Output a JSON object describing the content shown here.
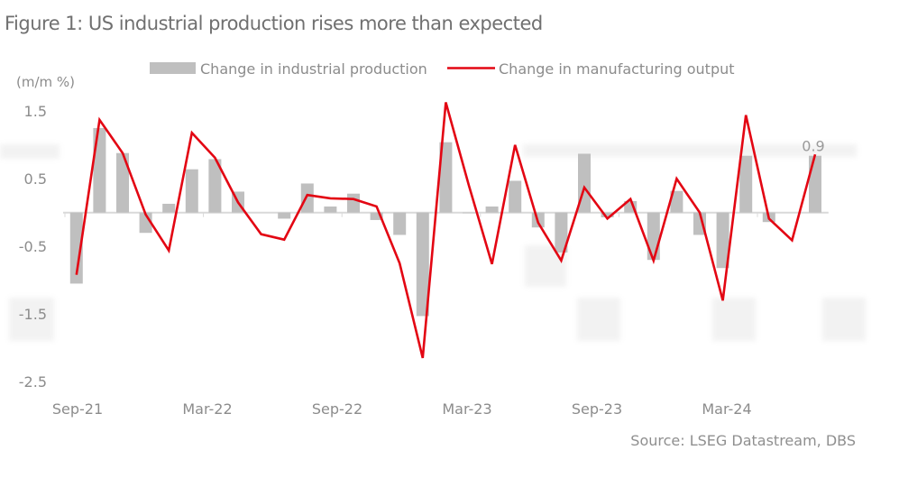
{
  "title": "Figure 1:  US industrial production rises more than expected",
  "source": "Source: LSEG Datastream, DBS",
  "colors": {
    "bar": "#bfbfbf",
    "line": "#e30613",
    "axis": "#d9d9d9",
    "text": "#8c8c8c"
  },
  "chart_data": {
    "type": "bar",
    "title": "Figure 1:  US industrial production rises more than expected",
    "ylabel": "(m/m %)",
    "xlabel": "",
    "ylim": [
      -2.5,
      1.5
    ],
    "yticks": [
      1.5,
      0.5,
      -0.5,
      -1.5,
      -2.5
    ],
    "ytick_labels": [
      "1.5",
      "0.5",
      "-0.5",
      "-1.5",
      "-2.5"
    ],
    "xtick_labels": [
      "Sep-21",
      "Mar-22",
      "Sep-22",
      "Mar-23",
      "Sep-23",
      "Mar-24"
    ],
    "xtick_indices": [
      0,
      6,
      12,
      18,
      24,
      30
    ],
    "grid": false,
    "legend_position": "top-center",
    "categories": [
      "Sep-21",
      "Oct-21",
      "Nov-21",
      "Dec-21",
      "Jan-22",
      "Feb-22",
      "Mar-22",
      "Apr-22",
      "May-22",
      "Jun-22",
      "Jul-22",
      "Aug-22",
      "Sep-22",
      "Oct-22",
      "Nov-22",
      "Dec-22",
      "Jan-23",
      "Feb-23",
      "Mar-23",
      "Apr-23",
      "May-23",
      "Jun-23",
      "Jul-23",
      "Aug-23",
      "Sep-23",
      "Oct-23",
      "Nov-23",
      "Dec-23",
      "Jan-24",
      "Feb-24",
      "Mar-24",
      "Apr-24",
      "May-24"
    ],
    "series": [
      {
        "name": "Change in industrial production",
        "type": "bar",
        "values": [
          -1.05,
          1.25,
          0.88,
          -0.3,
          0.13,
          0.64,
          0.79,
          0.31,
          0.0,
          -0.09,
          0.43,
          0.09,
          0.28,
          -0.11,
          -0.33,
          -1.53,
          1.04,
          -0.01,
          0.09,
          0.47,
          -0.22,
          -0.59,
          0.87,
          -0.07,
          0.17,
          -0.7,
          0.32,
          -0.33,
          -0.82,
          0.84,
          -0.14,
          0.0,
          0.84
        ]
      },
      {
        "name": "Change in manufacturing output",
        "type": "line",
        "values": [
          -0.92,
          1.37,
          0.88,
          -0.03,
          -0.56,
          1.18,
          0.81,
          0.15,
          -0.32,
          -0.4,
          0.26,
          0.21,
          0.2,
          0.09,
          -0.75,
          -2.15,
          1.63,
          0.4,
          -0.76,
          1.0,
          -0.15,
          -0.71,
          0.37,
          -0.09,
          0.2,
          -0.71,
          0.5,
          0.0,
          -1.3,
          1.44,
          -0.09,
          -0.41,
          0.86
        ]
      }
    ],
    "annotations": [
      {
        "category": "May-24",
        "text": "0.9"
      }
    ]
  }
}
